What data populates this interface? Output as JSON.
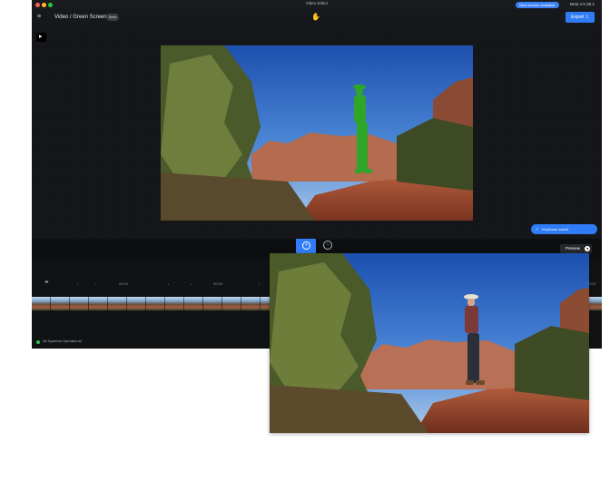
{
  "window": {
    "title": "Video Editor",
    "update_label": "New Version Available",
    "beta_version": "Beta V.0.35.2"
  },
  "header": {
    "breadcrumb": "Video / Green Screen",
    "badge": "Beta",
    "export_label": "Export"
  },
  "toast": {
    "text": "Keyframe saved"
  },
  "preview": {
    "label": "Preview"
  },
  "timeline": {
    "ticks": [
      "00:02",
      "00:03",
      "00:07"
    ]
  },
  "status": {
    "text": "All Systems Operational"
  },
  "colors": {
    "accent": "#2f7cf6",
    "green_screen": "#2fa52a",
    "status_ok": "#27c45a"
  },
  "icons": {
    "menu": "menu-icon",
    "hand": "hand-icon",
    "play": "play-icon",
    "playhead": "crosshair-icon"
  }
}
